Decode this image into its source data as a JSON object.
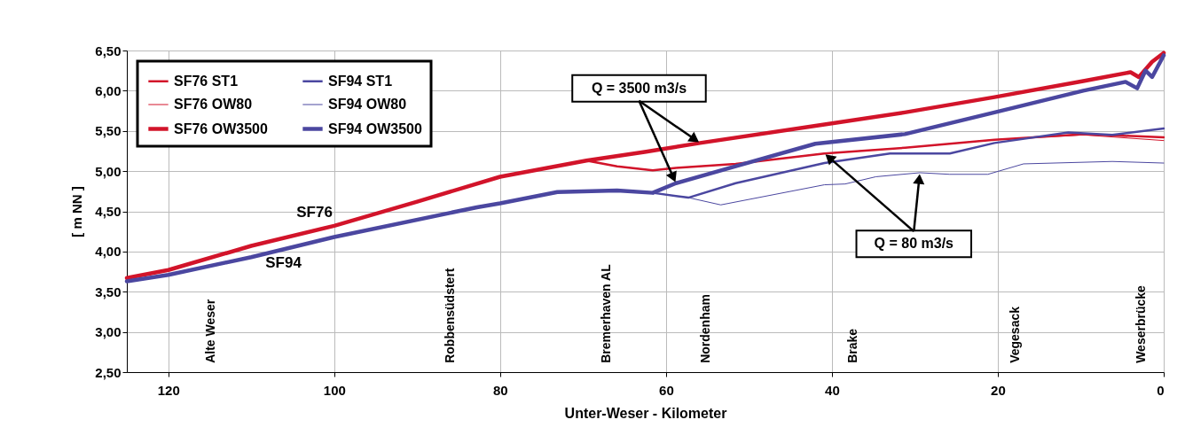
{
  "chart_data": {
    "type": "line",
    "xlabel": "Unter-Weser - Kilometer",
    "ylabel": "[ m NN ]",
    "xlim": [
      125,
      0
    ],
    "xticks": [
      120,
      100,
      80,
      60,
      40,
      20,
      0
    ],
    "ylim": [
      2.5,
      6.5
    ],
    "yticks": [
      {
        "value": 2.5,
        "label": "2,50"
      },
      {
        "value": 3.0,
        "label": "3,00"
      },
      {
        "value": 3.5,
        "label": "3,50"
      },
      {
        "value": 4.0,
        "label": "4,00"
      },
      {
        "value": 4.5,
        "label": "4,50"
      },
      {
        "value": 5.0,
        "label": "5,00"
      },
      {
        "value": 5.5,
        "label": "5,50"
      },
      {
        "value": 6.0,
        "label": "6,00"
      },
      {
        "value": 6.5,
        "label": "6,50"
      }
    ],
    "grid": true,
    "legend": "top left",
    "marker": "none",
    "line_style": "solid",
    "series": [
      {
        "name": "SF76 ST1",
        "color": "#d2142a",
        "x": [
          125,
          120,
          110,
          100,
          90,
          80,
          69.6,
          65.9,
          61.6,
          58.8,
          51.6,
          40.9,
          31.2,
          20.4,
          9.7,
          0
        ],
        "values": [
          3.67,
          3.77,
          4.07,
          4.32,
          4.62,
          4.93,
          5.13,
          5.06,
          5.01,
          5.04,
          5.09,
          5.22,
          5.29,
          5.39,
          5.46,
          5.42
        ]
      },
      {
        "name": "SF76 OW80",
        "color": "#d2142a",
        "x": [
          125,
          120,
          110,
          100,
          90,
          80,
          69.6,
          65.9,
          61.6,
          58.8,
          51.6,
          40.9,
          31.2,
          20.4,
          9.7,
          0
        ],
        "values": [
          3.67,
          3.77,
          4.07,
          4.32,
          4.62,
          4.93,
          5.13,
          5.06,
          5.01,
          5.04,
          5.09,
          5.22,
          5.29,
          5.39,
          5.45,
          5.38
        ]
      },
      {
        "name": "SF76 OW3500",
        "color": "#d2142a",
        "x": [
          125,
          120,
          110,
          100,
          90,
          80,
          69.6,
          62.4,
          55.9,
          40.9,
          31.2,
          20.4,
          9.7,
          4.0,
          3.0,
          1.4,
          0
        ],
        "values": [
          3.67,
          3.77,
          4.07,
          4.32,
          4.62,
          4.93,
          5.13,
          5.24,
          5.35,
          5.58,
          5.73,
          5.92,
          6.12,
          6.23,
          6.17,
          6.36,
          6.47
        ]
      },
      {
        "name": "SF94 ST1",
        "color": "#4b47a0",
        "x": [
          125,
          120,
          110,
          100,
          82.8,
          80,
          73.1,
          65.9,
          61.6,
          57.3,
          51.6,
          40.9,
          33,
          25.8,
          20.4,
          11.5,
          6.2,
          0
        ],
        "values": [
          3.63,
          3.71,
          3.93,
          4.18,
          4.55,
          4.6,
          4.74,
          4.76,
          4.73,
          4.67,
          4.85,
          5.1,
          5.22,
          5.22,
          5.35,
          5.48,
          5.45,
          5.53
        ]
      },
      {
        "name": "SF94 OW80",
        "color": "#4b47a0",
        "x": [
          125,
          120,
          110,
          100,
          82.8,
          80,
          73.1,
          65.9,
          61.6,
          57.3,
          53.4,
          52.4,
          40.9,
          38.4,
          34.7,
          29.4,
          25.8,
          21.2,
          16.9,
          6.2,
          0
        ],
        "values": [
          3.63,
          3.71,
          3.93,
          4.18,
          4.55,
          4.6,
          4.74,
          4.76,
          4.73,
          4.67,
          4.58,
          4.6,
          4.83,
          4.84,
          4.93,
          4.98,
          4.96,
          4.96,
          5.09,
          5.12,
          5.1
        ]
      },
      {
        "name": "SF94 OW3500",
        "color": "#4b47a0",
        "x": [
          125,
          120,
          110,
          100,
          82.8,
          80,
          73.1,
          65.9,
          61.6,
          58.8,
          51.6,
          42,
          31.2,
          20.4,
          9.7,
          4.6,
          3.2,
          2.2,
          1.4,
          0
        ],
        "values": [
          3.63,
          3.71,
          3.93,
          4.18,
          4.55,
          4.6,
          4.74,
          4.76,
          4.73,
          4.85,
          5.06,
          5.34,
          5.46,
          5.73,
          6.0,
          6.11,
          6.03,
          6.25,
          6.17,
          6.44
        ]
      }
    ],
    "annotations": [
      "SF76",
      "SF94",
      {
        "text": "Q = 3500 m3/s",
        "x": 55.9,
        "y": 5.35
      },
      {
        "text": "Q = 80 m3/s",
        "x": 40.9,
        "y": 5.22
      },
      "Alte Weser",
      "Robbensüdstert",
      "Bremerhaven AL",
      "Nordenham",
      "Brake",
      "Vegesack",
      "Weserbrücke"
    ]
  }
}
